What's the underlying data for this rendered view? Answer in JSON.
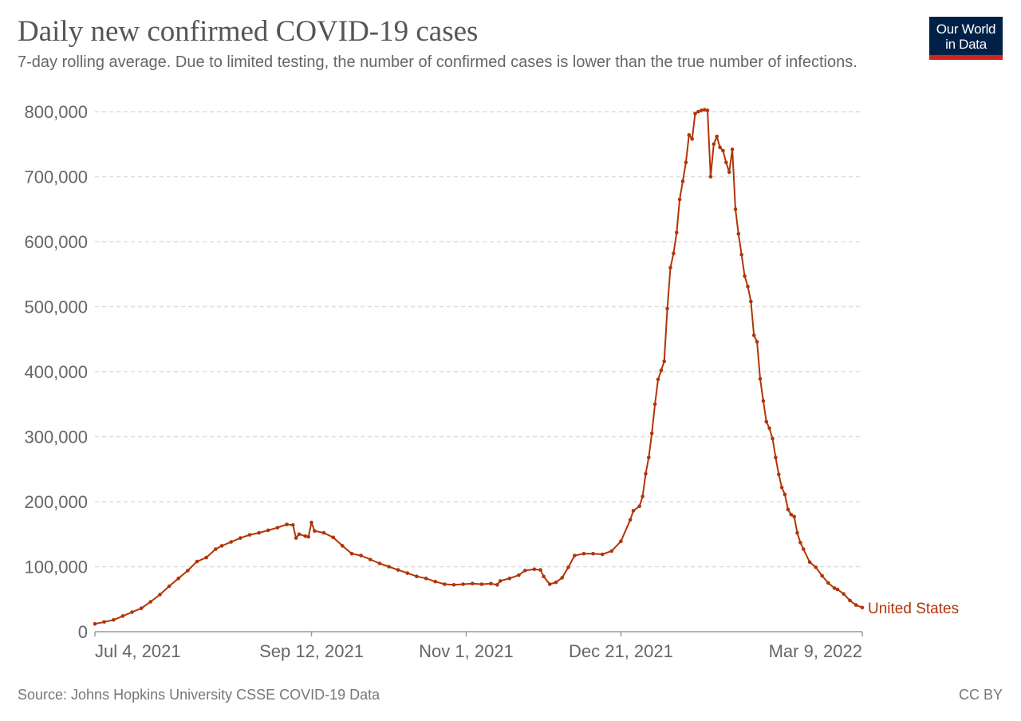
{
  "header": {
    "title": "Daily new confirmed COVID-19 cases",
    "subtitle": "7-day rolling average. Due to limited testing, the number of confirmed cases is lower than the true number of infections."
  },
  "logo": {
    "line1": "Our World",
    "line2": "in Data",
    "background": "#002147",
    "accent": "#ce261e"
  },
  "footer": {
    "source": "Source: Johns Hopkins University CSSE COVID-19 Data",
    "license": "CC BY"
  },
  "chart_data": {
    "type": "line",
    "title": "Daily new confirmed COVID-19 cases",
    "subtitle": "7-day rolling average. Due to limited testing, the number of confirmed cases is lower than the true number of infections.",
    "xlabel": "",
    "ylabel": "",
    "x_range": [
      "2021-07-04",
      "2022-03-09"
    ],
    "ylim": [
      0,
      800000
    ],
    "y_ticks": [
      0,
      100000,
      200000,
      300000,
      400000,
      500000,
      600000,
      700000,
      800000
    ],
    "y_tick_labels": [
      "0",
      "100,000",
      "200,000",
      "300,000",
      "400,000",
      "500,000",
      "600,000",
      "700,000",
      "800,000"
    ],
    "x_ticks": [
      "2021-07-04",
      "2021-09-12",
      "2021-11-01",
      "2021-12-21",
      "2022-03-09"
    ],
    "x_tick_labels": [
      "Jul 4, 2021",
      "Sep 12, 2021",
      "Nov 1, 2021",
      "Dec 21, 2021",
      "Mar 9, 2022"
    ],
    "grid": "horizontal dashed",
    "series_label_position": "line end",
    "series": [
      {
        "name": "United States",
        "color": "#b13507",
        "points": [
          [
            "2021-07-04",
            12000
          ],
          [
            "2021-07-07",
            15000
          ],
          [
            "2021-07-10",
            18000
          ],
          [
            "2021-07-13",
            24000
          ],
          [
            "2021-07-16",
            30000
          ],
          [
            "2021-07-19",
            36000
          ],
          [
            "2021-07-22",
            46000
          ],
          [
            "2021-07-25",
            57000
          ],
          [
            "2021-07-28",
            70000
          ],
          [
            "2021-07-31",
            82000
          ],
          [
            "2021-08-03",
            94000
          ],
          [
            "2021-08-06",
            108000
          ],
          [
            "2021-08-09",
            114000
          ],
          [
            "2021-08-12",
            127000
          ],
          [
            "2021-08-14",
            132000
          ],
          [
            "2021-08-17",
            138000
          ],
          [
            "2021-08-20",
            144000
          ],
          [
            "2021-08-23",
            149000
          ],
          [
            "2021-08-26",
            152000
          ],
          [
            "2021-08-29",
            156000
          ],
          [
            "2021-09-01",
            160000
          ],
          [
            "2021-09-04",
            165000
          ],
          [
            "2021-09-06",
            164000
          ],
          [
            "2021-09-07",
            144000
          ],
          [
            "2021-09-08",
            150000
          ],
          [
            "2021-09-10",
            147000
          ],
          [
            "2021-09-11",
            146000
          ],
          [
            "2021-09-12",
            168000
          ],
          [
            "2021-09-13",
            155000
          ],
          [
            "2021-09-16",
            152000
          ],
          [
            "2021-09-19",
            145000
          ],
          [
            "2021-09-22",
            132000
          ],
          [
            "2021-09-25",
            120000
          ],
          [
            "2021-09-28",
            117000
          ],
          [
            "2021-10-01",
            111000
          ],
          [
            "2021-10-04",
            105000
          ],
          [
            "2021-10-07",
            100000
          ],
          [
            "2021-10-10",
            95000
          ],
          [
            "2021-10-13",
            90000
          ],
          [
            "2021-10-16",
            85000
          ],
          [
            "2021-10-19",
            82000
          ],
          [
            "2021-10-22",
            77000
          ],
          [
            "2021-10-25",
            73000
          ],
          [
            "2021-10-28",
            72000
          ],
          [
            "2021-10-31",
            73000
          ],
          [
            "2021-11-03",
            74000
          ],
          [
            "2021-11-06",
            73000
          ],
          [
            "2021-11-09",
            74000
          ],
          [
            "2021-11-11",
            72000
          ],
          [
            "2021-11-12",
            78000
          ],
          [
            "2021-11-15",
            82000
          ],
          [
            "2021-11-18",
            87000
          ],
          [
            "2021-11-20",
            94000
          ],
          [
            "2021-11-23",
            96000
          ],
          [
            "2021-11-25",
            95000
          ],
          [
            "2021-11-26",
            85000
          ],
          [
            "2021-11-28",
            73000
          ],
          [
            "2021-11-30",
            76000
          ],
          [
            "2021-12-02",
            83000
          ],
          [
            "2021-12-04",
            99000
          ],
          [
            "2021-12-06",
            117000
          ],
          [
            "2021-12-09",
            120000
          ],
          [
            "2021-12-12",
            120000
          ],
          [
            "2021-12-15",
            119000
          ],
          [
            "2021-12-18",
            124000
          ],
          [
            "2021-12-21",
            139000
          ],
          [
            "2021-12-24",
            172000
          ],
          [
            "2021-12-25",
            186000
          ],
          [
            "2021-12-27",
            193000
          ],
          [
            "2021-12-28",
            208000
          ],
          [
            "2021-12-29",
            243000
          ],
          [
            "2021-12-30",
            268000
          ],
          [
            "2021-12-31",
            305000
          ],
          [
            "2022-01-01",
            350000
          ],
          [
            "2022-01-02",
            388000
          ],
          [
            "2022-01-03",
            402000
          ],
          [
            "2022-01-04",
            416000
          ],
          [
            "2022-01-05",
            497000
          ],
          [
            "2022-01-06",
            560000
          ],
          [
            "2022-01-07",
            582000
          ],
          [
            "2022-01-08",
            614000
          ],
          [
            "2022-01-09",
            665000
          ],
          [
            "2022-01-10",
            693000
          ],
          [
            "2022-01-11",
            722000
          ],
          [
            "2022-01-12",
            764000
          ],
          [
            "2022-01-13",
            758000
          ],
          [
            "2022-01-14",
            797000
          ],
          [
            "2022-01-15",
            800000
          ],
          [
            "2022-01-16",
            802000
          ],
          [
            "2022-01-17",
            803000
          ],
          [
            "2022-01-18",
            802000
          ],
          [
            "2022-01-19",
            700000
          ],
          [
            "2022-01-20",
            750000
          ],
          [
            "2022-01-21",
            762000
          ],
          [
            "2022-01-22",
            745000
          ],
          [
            "2022-01-23",
            740000
          ],
          [
            "2022-01-24",
            722000
          ],
          [
            "2022-01-25",
            707000
          ],
          [
            "2022-01-26",
            742000
          ],
          [
            "2022-01-27",
            650000
          ],
          [
            "2022-01-28",
            612000
          ],
          [
            "2022-01-29",
            580000
          ],
          [
            "2022-01-30",
            547000
          ],
          [
            "2022-01-31",
            531000
          ],
          [
            "2022-02-01",
            508000
          ],
          [
            "2022-02-02",
            456000
          ],
          [
            "2022-02-03",
            446000
          ],
          [
            "2022-02-04",
            389000
          ],
          [
            "2022-02-05",
            355000
          ],
          [
            "2022-02-06",
            323000
          ],
          [
            "2022-02-07",
            313000
          ],
          [
            "2022-02-08",
            297000
          ],
          [
            "2022-02-09",
            268000
          ],
          [
            "2022-02-10",
            242000
          ],
          [
            "2022-02-11",
            222000
          ],
          [
            "2022-02-12",
            211000
          ],
          [
            "2022-02-13",
            188000
          ],
          [
            "2022-02-14",
            180000
          ],
          [
            "2022-02-15",
            177000
          ],
          [
            "2022-02-16",
            152000
          ],
          [
            "2022-02-17",
            137000
          ],
          [
            "2022-02-18",
            127000
          ],
          [
            "2022-02-20",
            107000
          ],
          [
            "2022-02-22",
            99000
          ],
          [
            "2022-02-24",
            86000
          ],
          [
            "2022-02-26",
            75000
          ],
          [
            "2022-02-28",
            67000
          ],
          [
            "2022-03-01",
            65000
          ],
          [
            "2022-03-03",
            58000
          ],
          [
            "2022-03-05",
            48000
          ],
          [
            "2022-03-07",
            41000
          ],
          [
            "2022-03-09",
            37000
          ]
        ]
      }
    ]
  }
}
